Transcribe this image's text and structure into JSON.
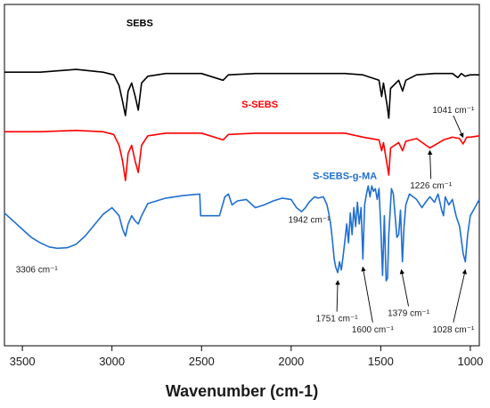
{
  "chart_data": {
    "type": "line",
    "title": "",
    "xlabel": "Wavenumber (cm-1)",
    "ylabel": "",
    "xlim": [
      3600,
      950
    ],
    "x_reversed": true,
    "x_ticks": [
      3500,
      3000,
      2500,
      2000,
      1500,
      1000
    ],
    "grid": false,
    "legend": "none",
    "series": [
      {
        "name": "SEBS",
        "color": "#000000",
        "label_at": [
          2845,
          8.2
        ],
        "points": [
          [
            3600,
            6.5
          ],
          [
            3400,
            6.5
          ],
          [
            3200,
            6.6
          ],
          [
            3050,
            6.5
          ],
          [
            2990,
            6.4
          ],
          [
            2960,
            6.0
          ],
          [
            2940,
            5.4
          ],
          [
            2925,
            4.9
          ],
          [
            2910,
            5.8
          ],
          [
            2890,
            6.1
          ],
          [
            2870,
            5.6
          ],
          [
            2853,
            5.1
          ],
          [
            2835,
            6.1
          ],
          [
            2800,
            6.35
          ],
          [
            2700,
            6.45
          ],
          [
            2500,
            6.45
          ],
          [
            2380,
            6.2
          ],
          [
            2350,
            6.4
          ],
          [
            2200,
            6.45
          ],
          [
            2000,
            6.45
          ],
          [
            1700,
            6.45
          ],
          [
            1600,
            6.4
          ],
          [
            1510,
            6.2
          ],
          [
            1495,
            5.6
          ],
          [
            1485,
            6.1
          ],
          [
            1465,
            5.3
          ],
          [
            1455,
            4.8
          ],
          [
            1445,
            5.9
          ],
          [
            1400,
            6.2
          ],
          [
            1378,
            5.8
          ],
          [
            1360,
            6.2
          ],
          [
            1300,
            6.4
          ],
          [
            1200,
            6.45
          ],
          [
            1100,
            6.45
          ],
          [
            1070,
            6.3
          ],
          [
            1050,
            6.45
          ],
          [
            1030,
            6.35
          ],
          [
            1000,
            6.4
          ],
          [
            950,
            6.4
          ]
        ]
      },
      {
        "name": "S-SEBS",
        "color": "#ff0000",
        "label_at": [
          2175,
          5.2
        ],
        "points": [
          [
            3600,
            4.3
          ],
          [
            3400,
            4.3
          ],
          [
            3200,
            4.35
          ],
          [
            3050,
            4.3
          ],
          [
            2990,
            4.2
          ],
          [
            2960,
            3.8
          ],
          [
            2940,
            3.2
          ],
          [
            2925,
            2.5
          ],
          [
            2910,
            3.5
          ],
          [
            2890,
            3.8
          ],
          [
            2870,
            3.2
          ],
          [
            2853,
            2.8
          ],
          [
            2835,
            3.8
          ],
          [
            2800,
            4.15
          ],
          [
            2700,
            4.25
          ],
          [
            2500,
            4.25
          ],
          [
            2380,
            4.0
          ],
          [
            2350,
            4.2
          ],
          [
            2200,
            4.25
          ],
          [
            2000,
            4.25
          ],
          [
            1700,
            4.25
          ],
          [
            1600,
            4.1
          ],
          [
            1510,
            4.0
          ],
          [
            1495,
            3.6
          ],
          [
            1485,
            3.9
          ],
          [
            1465,
            3.1
          ],
          [
            1455,
            2.7
          ],
          [
            1445,
            3.7
          ],
          [
            1400,
            3.9
          ],
          [
            1378,
            3.6
          ],
          [
            1360,
            3.95
          ],
          [
            1300,
            4.05
          ],
          [
            1226,
            3.7
          ],
          [
            1150,
            4.0
          ],
          [
            1100,
            4.1
          ],
          [
            1060,
            4.05
          ],
          [
            1041,
            3.85
          ],
          [
            1020,
            4.1
          ],
          [
            1000,
            4.1
          ],
          [
            950,
            4.15
          ]
        ]
      },
      {
        "name": "S-SEBS-g-MA",
        "color": "#1f6fd0",
        "label_at": [
          1700,
          2.55
        ],
        "points": [
          [
            3600,
            1.3
          ],
          [
            3550,
            1.0
          ],
          [
            3500,
            0.7
          ],
          [
            3450,
            0.4
          ],
          [
            3400,
            0.2
          ],
          [
            3350,
            0.05
          ],
          [
            3306,
            0.0
          ],
          [
            3250,
            0.02
          ],
          [
            3200,
            0.15
          ],
          [
            3150,
            0.45
          ],
          [
            3100,
            0.85
          ],
          [
            3050,
            1.25
          ],
          [
            3000,
            1.5
          ],
          [
            2960,
            1.2
          ],
          [
            2940,
            0.7
          ],
          [
            2925,
            0.45
          ],
          [
            2910,
            0.9
          ],
          [
            2890,
            1.2
          ],
          [
            2870,
            1.0
          ],
          [
            2853,
            0.9
          ],
          [
            2835,
            1.2
          ],
          [
            2800,
            1.65
          ],
          [
            2700,
            1.85
          ],
          [
            2600,
            1.95
          ],
          [
            2510,
            2.0
          ],
          [
            2505,
            1.2
          ],
          [
            2400,
            1.2
          ],
          [
            2370,
            1.9
          ],
          [
            2350,
            2.0
          ],
          [
            2330,
            1.6
          ],
          [
            2300,
            1.75
          ],
          [
            2250,
            1.8
          ],
          [
            2200,
            1.5
          ],
          [
            2150,
            1.6
          ],
          [
            2100,
            1.75
          ],
          [
            2050,
            1.85
          ],
          [
            2000,
            1.8
          ],
          [
            1970,
            1.5
          ],
          [
            1942,
            1.35
          ],
          [
            1920,
            1.5
          ],
          [
            1900,
            1.7
          ],
          [
            1870,
            1.9
          ],
          [
            1850,
            1.85
          ],
          [
            1820,
            1.9
          ],
          [
            1800,
            1.6
          ],
          [
            1790,
            1.3
          ],
          [
            1780,
            0.9
          ],
          [
            1770,
            0.3
          ],
          [
            1760,
            -0.4
          ],
          [
            1751,
            -0.7
          ],
          [
            1740,
            -0.9
          ],
          [
            1730,
            -0.5
          ],
          [
            1720,
            -0.8
          ],
          [
            1710,
            -0.3
          ],
          [
            1700,
            0.3
          ],
          [
            1690,
            0.9
          ],
          [
            1680,
            0.2
          ],
          [
            1670,
            1.3
          ],
          [
            1660,
            0.5
          ],
          [
            1650,
            1.5
          ],
          [
            1640,
            0.8
          ],
          [
            1630,
            1.7
          ],
          [
            1620,
            0.9
          ],
          [
            1610,
            1.5
          ],
          [
            1600,
            -0.4
          ],
          [
            1590,
            1.6
          ],
          [
            1580,
            2.0
          ],
          [
            1570,
            2.3
          ],
          [
            1560,
            1.9
          ],
          [
            1550,
            2.3
          ],
          [
            1540,
            2.1
          ],
          [
            1530,
            2.2
          ],
          [
            1520,
            1.8
          ],
          [
            1510,
            2.2
          ],
          [
            1500,
            0.8
          ],
          [
            1490,
            -1.0
          ],
          [
            1480,
            1.2
          ],
          [
            1470,
            -1.2
          ],
          [
            1462,
            -1.1
          ],
          [
            1455,
            0.5
          ],
          [
            1440,
            2.2
          ],
          [
            1430,
            2.0
          ],
          [
            1420,
            1.2
          ],
          [
            1410,
            0.4
          ],
          [
            1400,
            0.5
          ],
          [
            1390,
            1.4
          ],
          [
            1379,
            -0.5
          ],
          [
            1370,
            0.8
          ],
          [
            1360,
            1.6
          ],
          [
            1340,
            2.0
          ],
          [
            1300,
            1.8
          ],
          [
            1270,
            1.5
          ],
          [
            1250,
            1.7
          ],
          [
            1226,
            1.9
          ],
          [
            1200,
            1.7
          ],
          [
            1180,
            2.0
          ],
          [
            1160,
            1.4
          ],
          [
            1150,
            1.2
          ],
          [
            1140,
            1.9
          ],
          [
            1120,
            1.6
          ],
          [
            1100,
            1.8
          ],
          [
            1080,
            1.2
          ],
          [
            1060,
            0.8
          ],
          [
            1040,
            -0.2
          ],
          [
            1028,
            -0.5
          ],
          [
            1015,
            0.5
          ],
          [
            1000,
            1.2
          ],
          [
            975,
            1.5
          ],
          [
            950,
            1.8
          ]
        ]
      }
    ],
    "annotations": [
      {
        "label": "1041 cm⁻¹",
        "tx": 1095,
        "ty": 5.0,
        "ax": 1041,
        "ay": 4.1,
        "arrow": true
      },
      {
        "label": "1226 cm⁻¹",
        "tx": 1220,
        "ty": 2.2,
        "ax": 1226,
        "ay": 3.6,
        "arrow": true,
        "text_below": true
      },
      {
        "label": "3306 cm⁻¹",
        "tx": 3420,
        "ty": -0.9,
        "ax": 0,
        "ay": 0,
        "arrow": false
      },
      {
        "label": "1942 cm⁻¹",
        "tx": 1900,
        "ty": 0.95,
        "ax": 0,
        "ay": 0,
        "arrow": false
      },
      {
        "label": "1751 cm⁻¹",
        "tx": 1745,
        "ty": -2.7,
        "ax": 1740,
        "ay": -1.2,
        "arrow": true,
        "text_below": true
      },
      {
        "label": "1600 cm⁻¹",
        "tx": 1545,
        "ty": -3.1,
        "ax": 1600,
        "ay": -0.7,
        "arrow": true,
        "text_below": true
      },
      {
        "label": "1379 cm⁻¹",
        "tx": 1345,
        "ty": -2.5,
        "ax": 1385,
        "ay": -0.8,
        "arrow": true,
        "text_below": true
      },
      {
        "label": "1028 cm⁻¹",
        "tx": 1095,
        "ty": -3.1,
        "ax": 1028,
        "ay": -0.8,
        "arrow": true,
        "text_below": true
      }
    ]
  }
}
